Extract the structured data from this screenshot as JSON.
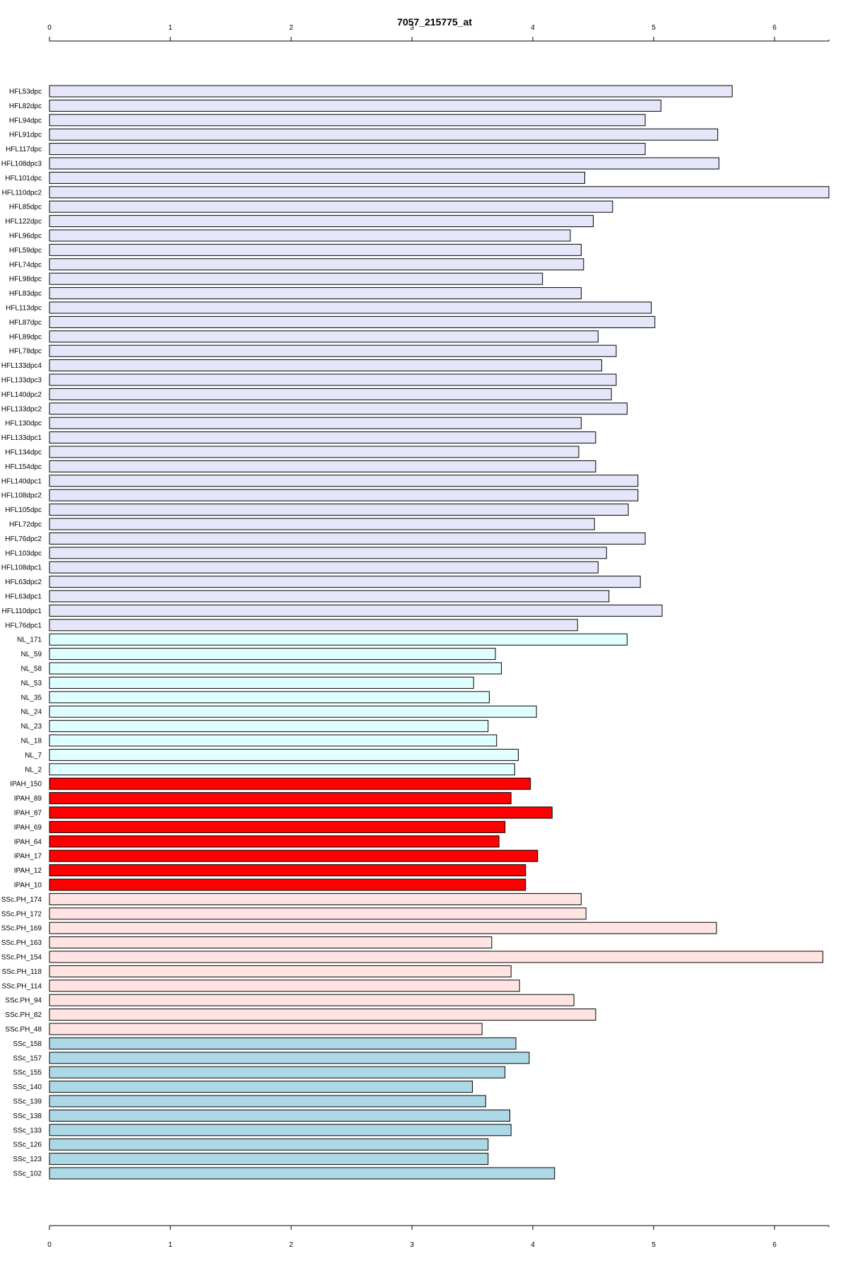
{
  "chart_data": {
    "type": "bar",
    "orientation": "horizontal",
    "title": "7057_215775_at",
    "xlabel": "",
    "ylabel": "",
    "xlim": [
      0,
      6.45
    ],
    "x_ticks": [
      0,
      1,
      2,
      3,
      4,
      5,
      6
    ],
    "axes": [
      "top",
      "bottom"
    ],
    "grid": false,
    "legend": "none",
    "group_colors": {
      "HFL": "#e6e6fa",
      "NL": "#e0ffff",
      "IPAH": "#ff0000",
      "SSc.PH": "#ffe4e1",
      "SSc": "#add8e6"
    },
    "categories": [
      "HFL53dpc",
      "HFL82dpc",
      "HFL94dpc",
      "HFL91dpc",
      "HFL117dpc",
      "HFL108dpc3",
      "HFL101dpc",
      "HFL110dpc2",
      "HFL85dpc",
      "HFL122dpc",
      "HFL96dpc",
      "HFL59dpc",
      "HFL74dpc",
      "HFL98dpc",
      "HFL83dpc",
      "HFL113dpc",
      "HFL87dpc",
      "HFL89dpc",
      "HFL78dpc",
      "HFL133dpc4",
      "HFL133dpc3",
      "HFL140dpc2",
      "HFL133dpc2",
      "HFL130dpc",
      "HFL133dpc1",
      "HFL134dpc",
      "HFL154dpc",
      "HFL140dpc1",
      "HFL108dpc2",
      "HFL105dpc",
      "HFL72dpc",
      "HFL76dpc2",
      "HFL103dpc",
      "HFL108dpc1",
      "HFL63dpc2",
      "HFL63dpc1",
      "HFL110dpc1",
      "HFL76dpc1",
      "NL_171",
      "NL_59",
      "NL_58",
      "NL_53",
      "NL_35",
      "NL_24",
      "NL_23",
      "NL_18",
      "NL_7",
      "NL_2",
      "IPAH_150",
      "IPAH_89",
      "IPAH_87",
      "IPAH_69",
      "IPAH_64",
      "IPAH_17",
      "IPAH_12",
      "IPAH_10",
      "SSc.PH_174",
      "SSc.PH_172",
      "SSc.PH_169",
      "SSc.PH_163",
      "SSc.PH_154",
      "SSc.PH_118",
      "SSc.PH_114",
      "SSc.PH_94",
      "SSc.PH_82",
      "SSc.PH_48",
      "SSc_158",
      "SSc_157",
      "SSc_155",
      "SSc_140",
      "SSc_139",
      "SSc_138",
      "SSc_133",
      "SSc_126",
      "SSc_123",
      "SSc_102"
    ],
    "groups": [
      "HFL",
      "HFL",
      "HFL",
      "HFL",
      "HFL",
      "HFL",
      "HFL",
      "HFL",
      "HFL",
      "HFL",
      "HFL",
      "HFL",
      "HFL",
      "HFL",
      "HFL",
      "HFL",
      "HFL",
      "HFL",
      "HFL",
      "HFL",
      "HFL",
      "HFL",
      "HFL",
      "HFL",
      "HFL",
      "HFL",
      "HFL",
      "HFL",
      "HFL",
      "HFL",
      "HFL",
      "HFL",
      "HFL",
      "HFL",
      "HFL",
      "HFL",
      "HFL",
      "HFL",
      "NL",
      "NL",
      "NL",
      "NL",
      "NL",
      "NL",
      "NL",
      "NL",
      "NL",
      "NL",
      "IPAH",
      "IPAH",
      "IPAH",
      "IPAH",
      "IPAH",
      "IPAH",
      "IPAH",
      "IPAH",
      "SSc.PH",
      "SSc.PH",
      "SSc.PH",
      "SSc.PH",
      "SSc.PH",
      "SSc.PH",
      "SSc.PH",
      "SSc.PH",
      "SSc.PH",
      "SSc.PH",
      "SSc",
      "SSc",
      "SSc",
      "SSc",
      "SSc",
      "SSc",
      "SSc",
      "SSc",
      "SSc",
      "SSc"
    ],
    "values": [
      5.65,
      5.06,
      4.93,
      5.53,
      4.93,
      5.54,
      4.43,
      6.45,
      4.66,
      4.5,
      4.31,
      4.4,
      4.42,
      4.08,
      4.4,
      4.98,
      5.01,
      4.54,
      4.69,
      4.57,
      4.69,
      4.65,
      4.78,
      4.4,
      4.52,
      4.38,
      4.52,
      4.87,
      4.87,
      4.79,
      4.51,
      4.93,
      4.61,
      4.54,
      4.89,
      4.63,
      5.07,
      4.37,
      4.78,
      3.69,
      3.74,
      3.51,
      3.64,
      4.03,
      3.63,
      3.7,
      3.88,
      3.85,
      3.98,
      3.82,
      4.16,
      3.77,
      3.72,
      4.04,
      3.94,
      3.94,
      4.4,
      4.44,
      5.52,
      3.66,
      6.4,
      3.82,
      3.89,
      4.34,
      4.52,
      3.58,
      3.86,
      3.97,
      3.77,
      3.5,
      3.61,
      3.81,
      3.82,
      3.63,
      3.63,
      4.18
    ]
  }
}
